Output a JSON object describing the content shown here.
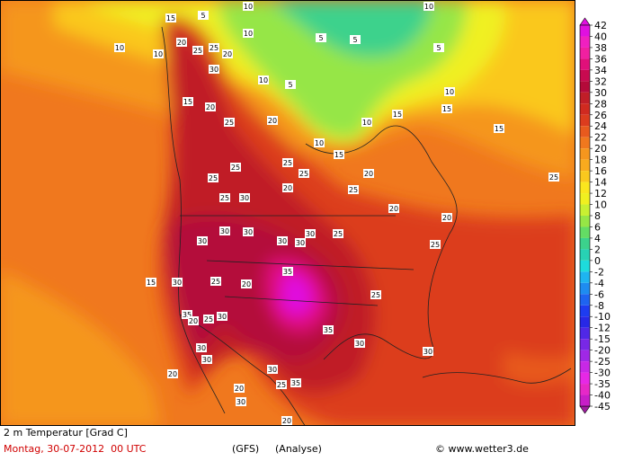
{
  "map": {
    "contour_labels": [
      5,
      10,
      10,
      15,
      20,
      25,
      25,
      20,
      10,
      10,
      10,
      5,
      5,
      5,
      10,
      30,
      10,
      5,
      15,
      20,
      25,
      20,
      10,
      15,
      15,
      15,
      10,
      15,
      25,
      20,
      25,
      25,
      25,
      20,
      25,
      25,
      20,
      20,
      25,
      30,
      30,
      30,
      30,
      30,
      30,
      30,
      25,
      25,
      35,
      15,
      30,
      25,
      20,
      25,
      35,
      20,
      25,
      30,
      35,
      30,
      30,
      30,
      30,
      20,
      30,
      35,
      25,
      20,
      30,
      20
    ]
  },
  "legend": {
    "levels": [
      42,
      40,
      38,
      36,
      34,
      32,
      30,
      28,
      26,
      24,
      22,
      20,
      18,
      16,
      14,
      12,
      10,
      8,
      6,
      4,
      2,
      0,
      -2,
      -4,
      -6,
      -8,
      -10,
      -12,
      -15,
      -20,
      -25,
      -30,
      -35,
      -40,
      -45
    ],
    "colors": [
      "#e010e0",
      "#f020c0",
      "#f020a0",
      "#e0107a",
      "#c80a50",
      "#b40a3a",
      "#c01e28",
      "#d02a20",
      "#dc3c1e",
      "#e85a1e",
      "#f0781e",
      "#f5961e",
      "#f8aa1e",
      "#fac81e",
      "#fae61e",
      "#f0f020",
      "#c8f032",
      "#96e646",
      "#64dc64",
      "#3cd28c",
      "#28d2b4",
      "#1edcdc",
      "#1eb4f0",
      "#1e8cf0",
      "#1e64f0",
      "#1e3cf0",
      "#2828e6",
      "#5028e6",
      "#7828e6",
      "#a028e6",
      "#c828e6",
      "#e628e6",
      "#e628c8",
      "#c81ec8",
      "#a01ea0"
    ]
  },
  "caption": {
    "title": "2 m Temperatur [Grad C]",
    "date": "Montag, 30-07-2012  00 UTC",
    "model": "(GFS)",
    "run": "(Analyse)",
    "credit": "© www.wetter3.de"
  }
}
